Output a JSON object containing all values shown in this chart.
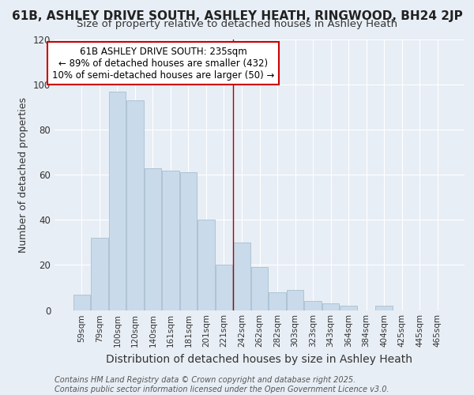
{
  "title": "61B, ASHLEY DRIVE SOUTH, ASHLEY HEATH, RINGWOOD, BH24 2JP",
  "subtitle": "Size of property relative to detached houses in Ashley Heath",
  "xlabel": "Distribution of detached houses by size in Ashley Heath",
  "ylabel": "Number of detached properties",
  "categories": [
    "59sqm",
    "79sqm",
    "100sqm",
    "120sqm",
    "140sqm",
    "161sqm",
    "181sqm",
    "201sqm",
    "221sqm",
    "242sqm",
    "262sqm",
    "282sqm",
    "303sqm",
    "323sqm",
    "343sqm",
    "364sqm",
    "384sqm",
    "404sqm",
    "425sqm",
    "445sqm",
    "465sqm"
  ],
  "values": [
    7,
    32,
    97,
    93,
    63,
    62,
    61,
    40,
    20,
    30,
    19,
    8,
    9,
    4,
    3,
    2,
    0,
    2,
    0,
    0,
    0
  ],
  "bar_color": "#c9daea",
  "bar_edge_color": "#a8bfd0",
  "vline_color": "#aa0000",
  "vline_x": 9,
  "annotation_title": "61B ASHLEY DRIVE SOUTH: 235sqm",
  "annotation_line1": "← 89% of detached houses are smaller (432)",
  "annotation_line2": "10% of semi-detached houses are larger (50) →",
  "annotation_box_color": "#ffffff",
  "annotation_box_edge_color": "#cc0000",
  "ylim": [
    0,
    120
  ],
  "yticks": [
    0,
    20,
    40,
    60,
    80,
    100,
    120
  ],
  "background_color": "#e8eef5",
  "grid_color": "#ffffff",
  "footer": "Contains HM Land Registry data © Crown copyright and database right 2025.\nContains public sector information licensed under the Open Government Licence v3.0.",
  "title_fontsize": 11,
  "subtitle_fontsize": 9.5,
  "xlabel_fontsize": 10,
  "ylabel_fontsize": 9,
  "tick_fontsize": 7.5,
  "annotation_fontsize": 8.5,
  "footer_fontsize": 7
}
